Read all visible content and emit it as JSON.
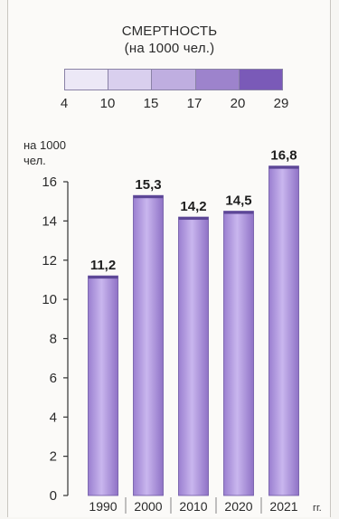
{
  "legend": {
    "title_line1": "СМЕРТНОСТЬ",
    "title_line2": "(на 1000 чел.)",
    "ticks": [
      "4",
      "10",
      "15",
      "17",
      "20",
      "29"
    ],
    "colors": [
      "#ece8f6",
      "#d9cfee",
      "#bfaee0",
      "#9d83cc",
      "#7a5ab8"
    ]
  },
  "chart_data": {
    "type": "bar",
    "ylabel_line1": "на 1000",
    "ylabel_line2": "чел.",
    "xunit": "гг.",
    "categories": [
      "1990",
      "2000",
      "2010",
      "2020",
      "2021"
    ],
    "values": [
      11.2,
      15.3,
      14.2,
      14.5,
      16.8
    ],
    "value_labels": [
      "11,2",
      "15,3",
      "14,2",
      "14,5",
      "16,8"
    ],
    "ylim": [
      0,
      16
    ],
    "yticks": [
      0,
      2,
      4,
      6,
      8,
      10,
      12,
      14,
      16
    ],
    "bar_color": "#b49ae0",
    "grid": false
  }
}
